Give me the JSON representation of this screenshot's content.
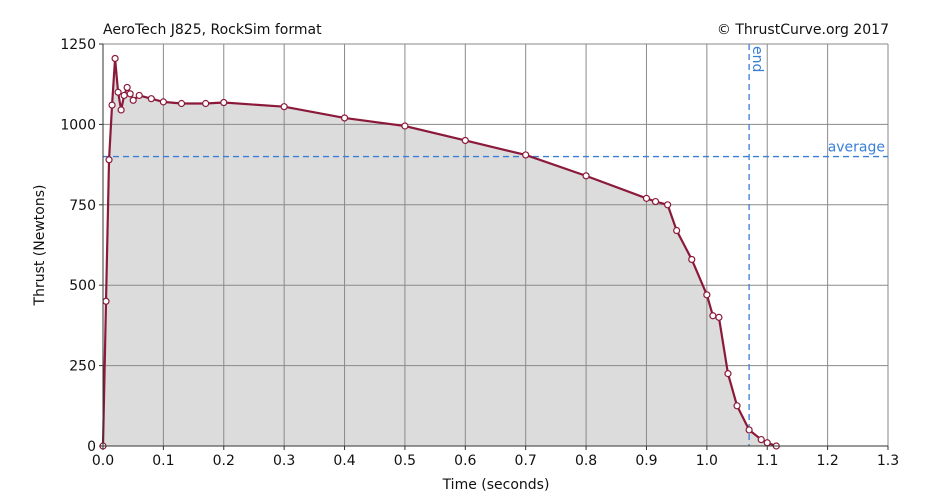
{
  "chart_data": {
    "type": "line",
    "title": "AeroTech J825, RockSim format",
    "credit": "© ThrustCurve.org 2017",
    "xlabel": "Time (seconds)",
    "ylabel": "Thrust (Newtons)",
    "xlim": [
      0,
      1.3
    ],
    "ylim": [
      0,
      1250
    ],
    "x_ticks": [
      "0.0",
      "0.1",
      "0.2",
      "0.3",
      "0.4",
      "0.5",
      "0.6",
      "0.7",
      "0.8",
      "0.9",
      "1.0",
      "1.1",
      "1.2",
      "1.3"
    ],
    "y_ticks": [
      "0",
      "250",
      "500",
      "750",
      "1000",
      "1250"
    ],
    "grid": true,
    "series": [
      {
        "color": "#8b1a3a",
        "fill": "#dcdcdc",
        "x": [
          0.0,
          0.005,
          0.01,
          0.015,
          0.02,
          0.025,
          0.03,
          0.035,
          0.04,
          0.045,
          0.05,
          0.06,
          0.08,
          0.1,
          0.13,
          0.17,
          0.2,
          0.3,
          0.4,
          0.5,
          0.6,
          0.7,
          0.8,
          0.9,
          0.915,
          0.935,
          0.95,
          0.975,
          1.0,
          1.01,
          1.02,
          1.035,
          1.05,
          1.07,
          1.09,
          1.1,
          1.115
        ],
        "y": [
          0,
          450,
          890,
          1060,
          1205,
          1100,
          1045,
          1090,
          1115,
          1095,
          1075,
          1090,
          1080,
          1070,
          1065,
          1065,
          1068,
          1055,
          1020,
          995,
          950,
          905,
          840,
          770,
          760,
          750,
          670,
          580,
          470,
          405,
          400,
          225,
          125,
          50,
          20,
          10,
          0
        ]
      }
    ],
    "references": {
      "average": {
        "label": "average",
        "value": 900
      },
      "end": {
        "label": "end",
        "value": 1.07
      }
    }
  }
}
